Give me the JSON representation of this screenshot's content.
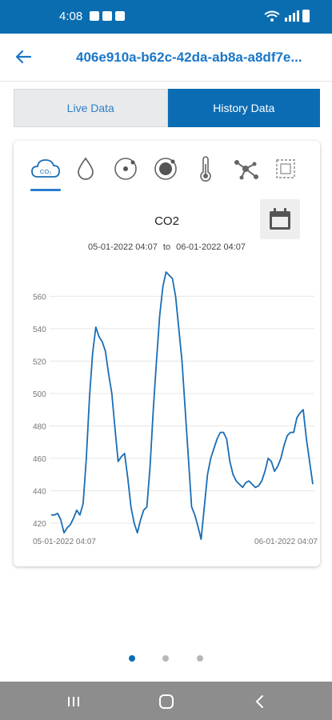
{
  "status_bar": {
    "time": "4:08"
  },
  "header": {
    "title": "406e910a-b62c-42da-ab8a-a8df7e..."
  },
  "tabs": [
    {
      "label": "Live Data",
      "active": false
    },
    {
      "label": "History Data",
      "active": true
    }
  ],
  "metrics": [
    {
      "icon": "co2-cloud-icon",
      "active": true
    },
    {
      "icon": "water-drop-icon",
      "active": false
    },
    {
      "icon": "small-particle-icon",
      "active": false
    },
    {
      "icon": "large-particle-icon",
      "active": false
    },
    {
      "icon": "thermometer-icon",
      "active": false
    },
    {
      "icon": "molecule-icon",
      "active": false
    },
    {
      "icon": "sensor-square-icon",
      "active": false
    }
  ],
  "chart": {
    "title": "CO2",
    "range_start": "05-01-2022 04:07",
    "range_to": "to",
    "range_end": "06-01-2022 04:07"
  },
  "colors": {
    "accent": "#0b6cb4",
    "line": "#1a6db5"
  },
  "chart_data": {
    "type": "line",
    "title": "CO2",
    "xlabel": "",
    "ylabel": "",
    "x_tick_labels": [
      "05-01-2022 04:07",
      "06-01-2022 04:07"
    ],
    "yticks": [
      420,
      440,
      460,
      480,
      500,
      520,
      540,
      560
    ],
    "ylim": [
      414,
      576
    ],
    "grid": true,
    "series": [
      {
        "values": [
          425,
          425,
          426,
          422,
          414,
          417,
          419,
          423,
          428,
          425,
          432,
          460,
          498,
          525,
          541,
          535,
          532,
          526,
          512,
          500,
          478,
          458,
          461,
          463,
          448,
          430,
          420,
          414,
          422,
          428,
          430,
          455,
          490,
          520,
          548,
          566,
          575,
          573,
          571,
          560,
          540,
          520,
          490,
          460,
          430,
          425,
          418,
          410,
          430,
          450,
          460,
          466,
          472,
          476,
          476,
          472,
          458,
          450,
          446,
          444,
          442,
          445,
          446,
          444,
          442,
          443,
          446,
          452,
          460,
          458,
          452,
          455,
          460,
          468,
          474,
          476,
          476,
          485,
          488,
          490,
          472,
          458,
          444
        ]
      }
    ]
  },
  "pager": {
    "count": 3,
    "active": 0
  }
}
